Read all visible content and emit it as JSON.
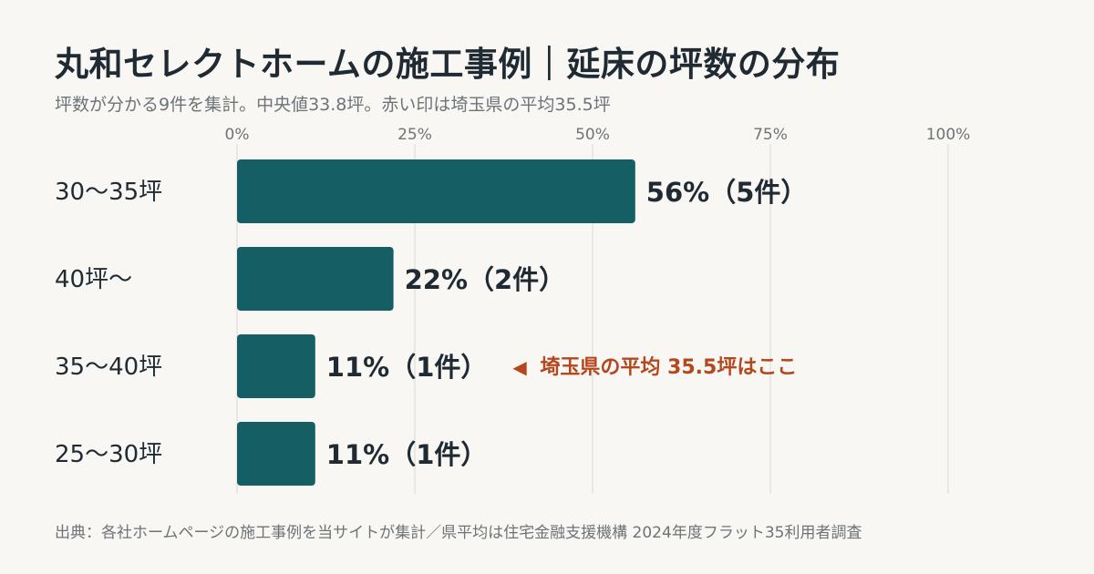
{
  "header": {
    "title": "丸和セレクトホームの施工事例｜延床の坪数の分布",
    "subtitle": "坪数が分かる9件を集計。中央値33.8坪。赤い印は埼玉県の平均35.5坪"
  },
  "footer": {
    "source": "出典：各社ホームページの施工事例を当サイトが集計／県平均は住宅金融支援機構 2024年度フラット35利用者調査"
  },
  "colors": {
    "bar": "#155e63",
    "accent": "#b5471f",
    "grid": "#dcdad5",
    "text": "#1f2a33",
    "muted": "#6e7377"
  },
  "chart_data": {
    "type": "bar",
    "orientation": "horizontal",
    "x_ticks": [
      "0%",
      "25%",
      "50%",
      "75%",
      "100%"
    ],
    "xlim": [
      0,
      100
    ],
    "grid": true,
    "categories": [
      "30〜35坪",
      "40坪〜",
      "35〜40坪",
      "25〜30坪"
    ],
    "values": [
      56,
      22,
      11,
      11
    ],
    "data_labels": [
      "56%（5件）",
      "22%（2件）",
      "11%（1件）",
      "11%（1件）"
    ],
    "annotation": {
      "category_index": 2,
      "marker": "◀",
      "text": "埼玉県の平均 35.5坪はここ"
    }
  }
}
